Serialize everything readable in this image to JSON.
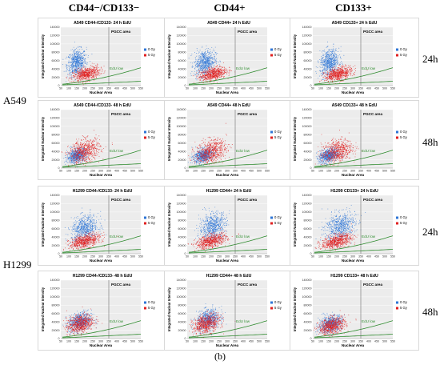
{
  "column_headers": [
    "CD44−/CD133−",
    "CD44+",
    "CD133+"
  ],
  "cell_lines": [
    "A549",
    "H1299"
  ],
  "time_labels": [
    "24h",
    "48h",
    "24h",
    "48h"
  ],
  "caption": "(b)",
  "colors": {
    "zero_gy": "#2e75d6",
    "five_gy": "#e02020",
    "edu_line": "#2e8b2e",
    "pgcc_line": "#555555"
  },
  "chart_data": [
    {
      "type": "scatter",
      "title": "A549 CD44-/CD133- 24 h EdU",
      "xlabel": "Nuclear Area",
      "ylabel": "Integrated Nuclear Intensity",
      "x_ticks": [
        "50",
        "100",
        "150",
        "200",
        "250",
        "300",
        "350",
        "400",
        "450",
        "500",
        "550"
      ],
      "y_ticks": [
        "0",
        "20000",
        "40000",
        "60000",
        "80000",
        "100000",
        "120000",
        "140000"
      ],
      "xlim": [
        50,
        550
      ],
      "ylim": [
        0,
        140000
      ],
      "annotations": [
        "PGCC area",
        "EdU low"
      ],
      "pgcc_x": 350,
      "series": [
        {
          "name": "0 Gy",
          "center": [
            150,
            55000
          ],
          "spread": [
            50,
            28000
          ]
        },
        {
          "name": "5 Gy",
          "center": [
            210,
            28000
          ],
          "spread": [
            70,
            14000
          ]
        }
      ]
    },
    {
      "type": "scatter",
      "title": "A549 CD44+ 24 h EdU",
      "xlabel": "Nuclear Area",
      "ylabel": "Integrated Nuclear Intensity",
      "x_ticks": [
        "50",
        "100",
        "150",
        "200",
        "250",
        "300",
        "350",
        "400",
        "450",
        "500",
        "550"
      ],
      "y_ticks": [
        "0",
        "20000",
        "40000",
        "60000",
        "80000",
        "100000",
        "120000",
        "140000"
      ],
      "xlim": [
        50,
        550
      ],
      "ylim": [
        0,
        140000
      ],
      "annotations": [
        "PGCC area",
        "EdU low"
      ],
      "pgcc_x": 350,
      "series": [
        {
          "name": "0 Gy",
          "center": [
            160,
            55000
          ],
          "spread": [
            55,
            28000
          ]
        },
        {
          "name": "5 Gy",
          "center": [
            210,
            28000
          ],
          "spread": [
            70,
            14000
          ]
        }
      ]
    },
    {
      "type": "scatter",
      "title": "A549 CD133+ 24 h EdU",
      "xlabel": "Nuclear Area",
      "ylabel": "Integrated Nuclear Intensity",
      "x_ticks": [
        "50",
        "100",
        "150",
        "200",
        "250",
        "300",
        "350",
        "400",
        "450",
        "500",
        "550"
      ],
      "y_ticks": [
        "0",
        "20000",
        "40000",
        "60000",
        "80000",
        "100000",
        "120000",
        "140000"
      ],
      "xlim": [
        50,
        550
      ],
      "ylim": [
        0,
        140000
      ],
      "annotations": [
        "PGCC area",
        "EdU low"
      ],
      "pgcc_x": 350,
      "series": [
        {
          "name": "0 Gy",
          "center": [
            155,
            55000
          ],
          "spread": [
            50,
            28000
          ]
        },
        {
          "name": "5 Gy",
          "center": [
            210,
            28000
          ],
          "spread": [
            70,
            14000
          ]
        }
      ]
    },
    {
      "type": "scatter",
      "title": "A549 CD44-/CD133- 48 h EdU",
      "xlabel": "Nuclear Area",
      "ylabel": "Integrated Nuclear Intensity",
      "x_ticks": [
        "50",
        "100",
        "150",
        "200",
        "250",
        "300",
        "350",
        "400",
        "450",
        "500",
        "550"
      ],
      "y_ticks": [
        "0",
        "20000",
        "40000",
        "60000",
        "80000",
        "100000",
        "120000",
        "140000"
      ],
      "xlim": [
        50,
        550
      ],
      "ylim": [
        0,
        140000
      ],
      "annotations": [
        "PGCC area",
        "EdU low"
      ],
      "pgcc_x": 350,
      "series": [
        {
          "name": "0 Gy",
          "center": [
            150,
            30000
          ],
          "spread": [
            50,
            15000
          ]
        },
        {
          "name": "5 Gy",
          "center": [
            200,
            40000
          ],
          "spread": [
            80,
            25000
          ]
        }
      ]
    },
    {
      "type": "scatter",
      "title": "A549 CD44+ 48 h EdU",
      "xlabel": "Nuclear Area",
      "ylabel": "Integrated Nuclear Intensity",
      "x_ticks": [
        "50",
        "100",
        "150",
        "200",
        "250",
        "300",
        "350",
        "400",
        "450",
        "500",
        "550"
      ],
      "y_ticks": [
        "0",
        "20000",
        "40000",
        "60000",
        "80000",
        "100000",
        "120000",
        "140000"
      ],
      "xlim": [
        50,
        550
      ],
      "ylim": [
        0,
        140000
      ],
      "annotations": [
        "PGCC area",
        "EdU low"
      ],
      "pgcc_x": 350,
      "series": [
        {
          "name": "0 Gy",
          "center": [
            150,
            30000
          ],
          "spread": [
            50,
            15000
          ]
        },
        {
          "name": "5 Gy",
          "center": [
            200,
            40000
          ],
          "spread": [
            80,
            25000
          ]
        }
      ]
    },
    {
      "type": "scatter",
      "title": "A549 CD133+ 48 h EdU",
      "xlabel": "Nuclear Area",
      "ylabel": "Integrated Nuclear Intensity",
      "x_ticks": [
        "50",
        "100",
        "150",
        "200",
        "250",
        "300",
        "350",
        "400",
        "450",
        "500",
        "550"
      ],
      "y_ticks": [
        "0",
        "20000",
        "40000",
        "60000",
        "80000",
        "100000",
        "120000",
        "140000"
      ],
      "xlim": [
        50,
        550
      ],
      "ylim": [
        0,
        140000
      ],
      "annotations": [
        "PGCC area",
        "EdU low"
      ],
      "pgcc_x": 350,
      "series": [
        {
          "name": "0 Gy",
          "center": [
            150,
            30000
          ],
          "spread": [
            50,
            15000
          ]
        },
        {
          "name": "5 Gy",
          "center": [
            200,
            40000
          ],
          "spread": [
            80,
            25000
          ]
        }
      ]
    },
    {
      "type": "scatter",
      "title": "H1299 CD44-/CD133- 24 h EdU",
      "xlabel": "Nuclear Area",
      "ylabel": "Integrated Nuclear Intensity",
      "x_ticks": [
        "50",
        "100",
        "150",
        "200",
        "250",
        "300",
        "350",
        "400",
        "450",
        "500",
        "550"
      ],
      "y_ticks": [
        "0",
        "20000",
        "40000",
        "60000",
        "80000",
        "100000",
        "120000",
        "140000"
      ],
      "xlim": [
        50,
        550
      ],
      "ylim": [
        0,
        140000
      ],
      "annotations": [
        "PGCC area",
        "EdU low"
      ],
      "pgcc_x": 350,
      "series": [
        {
          "name": "0 Gy",
          "center": [
            200,
            60000
          ],
          "spread": [
            70,
            28000
          ]
        },
        {
          "name": "5 Gy",
          "center": [
            200,
            30000
          ],
          "spread": [
            80,
            14000
          ]
        }
      ]
    },
    {
      "type": "scatter",
      "title": "H1299 CD44+ 24 h EdU",
      "xlabel": "Nuclear Area",
      "ylabel": "Integrated Nuclear Intensity",
      "x_ticks": [
        "50",
        "100",
        "150",
        "200",
        "250",
        "300",
        "350",
        "400",
        "450",
        "500",
        "550"
      ],
      "y_ticks": [
        "0",
        "20000",
        "40000",
        "60000",
        "80000",
        "100000",
        "120000",
        "140000"
      ],
      "xlim": [
        50,
        550
      ],
      "ylim": [
        0,
        140000
      ],
      "annotations": [
        "PGCC area",
        "EdU low"
      ],
      "pgcc_x": 350,
      "series": [
        {
          "name": "0 Gy",
          "center": [
            210,
            65000
          ],
          "spread": [
            70,
            30000
          ]
        },
        {
          "name": "5 Gy",
          "center": [
            200,
            30000
          ],
          "spread": [
            80,
            14000
          ]
        }
      ]
    },
    {
      "type": "scatter",
      "title": "H1299 CD133+ 24 h EdU",
      "xlabel": "Nuclear Area",
      "ylabel": "Integrated Nuclear Intensity",
      "x_ticks": [
        "50",
        "100",
        "150",
        "200",
        "250",
        "300",
        "350",
        "400",
        "450",
        "500",
        "550"
      ],
      "y_ticks": [
        "0",
        "20000",
        "40000",
        "60000",
        "80000",
        "100000",
        "120000",
        "140000"
      ],
      "xlim": [
        50,
        550
      ],
      "ylim": [
        0,
        140000
      ],
      "annotations": [
        "PGCC area",
        "EdU low"
      ],
      "pgcc_x": 350,
      "series": [
        {
          "name": "0 Gy",
          "center": [
            220,
            65000
          ],
          "spread": [
            80,
            30000
          ]
        },
        {
          "name": "5 Gy",
          "center": [
            200,
            30000
          ],
          "spread": [
            80,
            14000
          ]
        }
      ]
    },
    {
      "type": "scatter",
      "title": "H1299 CD44-/CD133- 48 h EdU",
      "xlabel": "Nuclear Area",
      "ylabel": "Integrated Nuclear Intensity",
      "x_ticks": [
        "50",
        "100",
        "150",
        "200",
        "250",
        "300",
        "350",
        "400",
        "450",
        "500",
        "550"
      ],
      "y_ticks": [
        "0",
        "20000",
        "40000",
        "60000",
        "80000",
        "100000",
        "120000",
        "140000"
      ],
      "xlim": [
        50,
        550
      ],
      "ylim": [
        0,
        140000
      ],
      "annotations": [
        "PGCC area",
        "EdU low"
      ],
      "pgcc_x": 350,
      "series": [
        {
          "name": "0 Gy",
          "center": [
            170,
            40000
          ],
          "spread": [
            60,
            20000
          ]
        },
        {
          "name": "5 Gy",
          "center": [
            170,
            35000
          ],
          "spread": [
            70,
            20000
          ]
        }
      ]
    },
    {
      "type": "scatter",
      "title": "H1299 CD44+ 48 h EdU",
      "xlabel": "Nuclear Area",
      "ylabel": "Integrated Nuclear Intensity",
      "x_ticks": [
        "50",
        "100",
        "150",
        "200",
        "250",
        "300",
        "350",
        "400",
        "450",
        "500",
        "550"
      ],
      "y_ticks": [
        "0",
        "20000",
        "40000",
        "60000",
        "80000",
        "100000",
        "120000",
        "140000"
      ],
      "xlim": [
        50,
        550
      ],
      "ylim": [
        0,
        140000
      ],
      "annotations": [
        "PGCC area",
        "EdU low"
      ],
      "pgcc_x": 350,
      "series": [
        {
          "name": "0 Gy",
          "center": [
            180,
            45000
          ],
          "spread": [
            60,
            22000
          ]
        },
        {
          "name": "5 Gy",
          "center": [
            170,
            35000
          ],
          "spread": [
            70,
            20000
          ]
        }
      ]
    },
    {
      "type": "scatter",
      "title": "H1299 CD133+ 48 h EdU",
      "xlabel": "Nuclear Area",
      "ylabel": "Integrated Nuclear Intensity",
      "x_ticks": [
        "50",
        "100",
        "150",
        "200",
        "250",
        "300",
        "350",
        "400",
        "450",
        "500",
        "550"
      ],
      "y_ticks": [
        "0",
        "20000",
        "40000",
        "60000",
        "80000",
        "100000",
        "120000",
        "140000"
      ],
      "xlim": [
        50,
        550
      ],
      "ylim": [
        0,
        140000
      ],
      "annotations": [
        "PGCC area",
        "EdU low"
      ],
      "pgcc_x": 350,
      "series": [
        {
          "name": "0 Gy",
          "center": [
            160,
            35000
          ],
          "spread": [
            60,
            18000
          ]
        },
        {
          "name": "5 Gy",
          "center": [
            170,
            30000
          ],
          "spread": [
            70,
            18000
          ]
        }
      ]
    }
  ]
}
